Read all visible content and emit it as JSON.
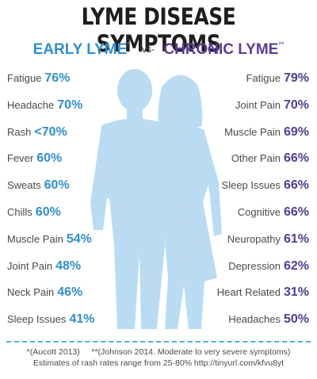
{
  "title": "LYME DISEASE SYMPTOMS",
  "subtitle": {
    "early": "EARLY LYME",
    "early_mark": "*",
    "vs": "-vs-",
    "chronic": "CHRONIC LYME",
    "chronic_mark": "**"
  },
  "early_lyme": [
    {
      "label": "Fatigue",
      "value": "76%"
    },
    {
      "label": "Headache",
      "value": "70%"
    },
    {
      "label": "Rash",
      "value": "<70%"
    },
    {
      "label": "Fever",
      "value": "60%"
    },
    {
      "label": "Sweats",
      "value": "60%"
    },
    {
      "label": "Chills",
      "value": "60%"
    },
    {
      "label": "Muscle Pain",
      "value": "54%"
    },
    {
      "label": "Joint Pain",
      "value": "48%"
    },
    {
      "label": "Neck Pain",
      "value": "46%"
    },
    {
      "label": "Sleep Issues",
      "value": "41%"
    }
  ],
  "chronic_lyme": [
    {
      "label": "Fatigue",
      "value": "79%"
    },
    {
      "label": "Joint Pain",
      "value": "70%"
    },
    {
      "label": "Muscle Pain",
      "value": "69%"
    },
    {
      "label": "Other Pain",
      "value": "66%"
    },
    {
      "label": "Sleep Issues",
      "value": "66%"
    },
    {
      "label": "Cognitive",
      "value": "66%"
    },
    {
      "label": "Neuropathy",
      "value": "61%"
    },
    {
      "label": "Depression",
      "value": "62%"
    },
    {
      "label": "Heart Related",
      "value": "31%"
    },
    {
      "label": "Headaches",
      "value": "50%"
    }
  ],
  "footer": {
    "line1": "*(Aucott 2013)     **(Johnson 2014. Moderate to very severe symptoms)",
    "line2": "Estimates of rash rates range from 25-80% http://tinyurl.com/kfvu8yt"
  },
  "colors": {
    "early": "#2e8fcf",
    "chronic": "#5a3d96",
    "silhouette": "#b9dcf2"
  }
}
